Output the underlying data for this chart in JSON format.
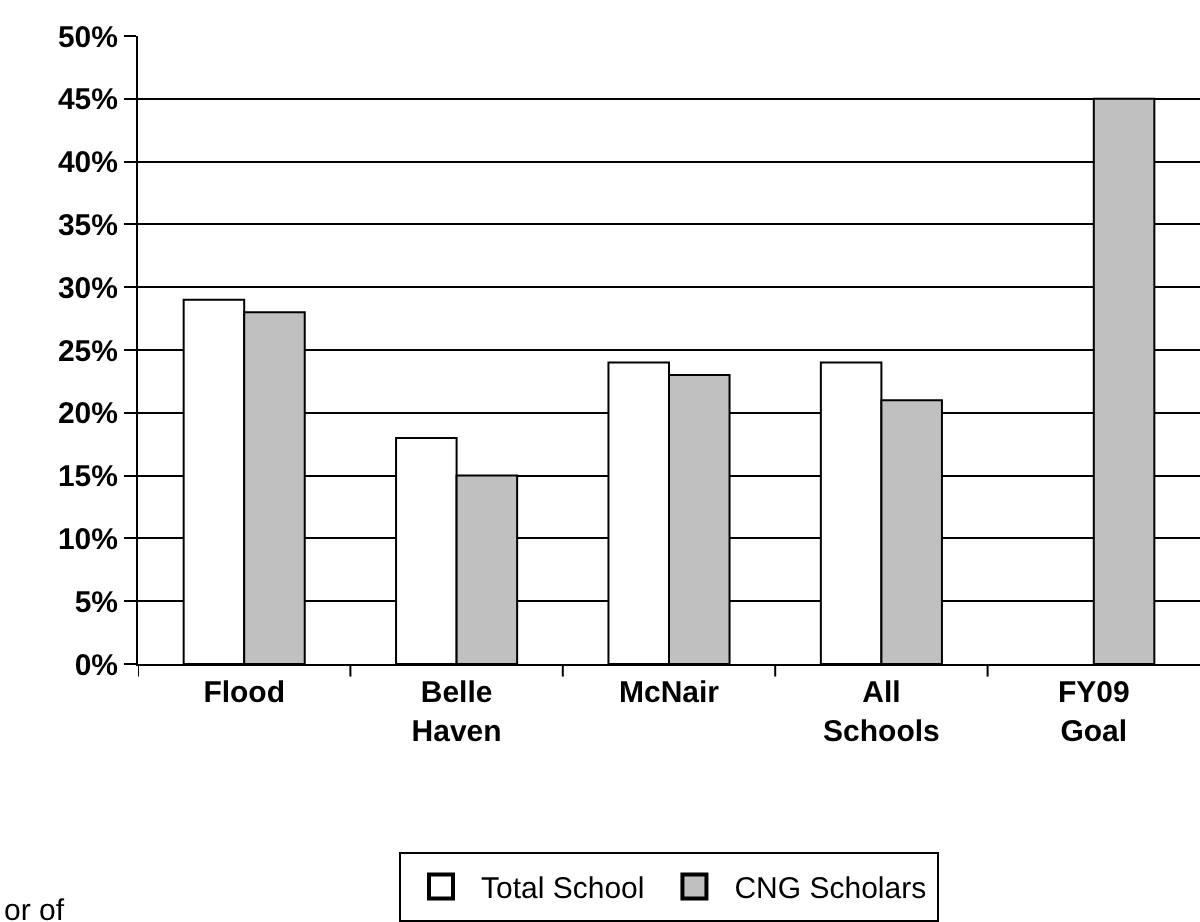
{
  "chart_data": {
    "type": "bar",
    "categories": [
      "Flood",
      "Belle Haven",
      "McNair",
      "All Schools",
      "FY09 Goal"
    ],
    "series": [
      {
        "name": "Total School",
        "color": "#ffffff",
        "values": [
          29,
          18,
          24,
          24,
          null
        ]
      },
      {
        "name": "CNG Scholars",
        "color": "#c0c0c0",
        "values": [
          28,
          15,
          23,
          21,
          45
        ]
      }
    ],
    "ylim": [
      0,
      50
    ],
    "yticks": [
      {
        "value": 0,
        "label": "0%"
      },
      {
        "value": 5,
        "label": "5%"
      },
      {
        "value": 10,
        "label": "10%"
      },
      {
        "value": 15,
        "label": "15%"
      },
      {
        "value": 20,
        "label": "20%"
      },
      {
        "value": 25,
        "label": "25%"
      },
      {
        "value": 30,
        "label": "30%"
      },
      {
        "value": 35,
        "label": "35%"
      },
      {
        "value": 40,
        "label": "40%"
      },
      {
        "value": 45,
        "label": "45%"
      },
      {
        "value": 50,
        "label": "50%"
      }
    ],
    "grid": "y",
    "legend": "bottom",
    "annotations": [
      "or of"
    ]
  }
}
